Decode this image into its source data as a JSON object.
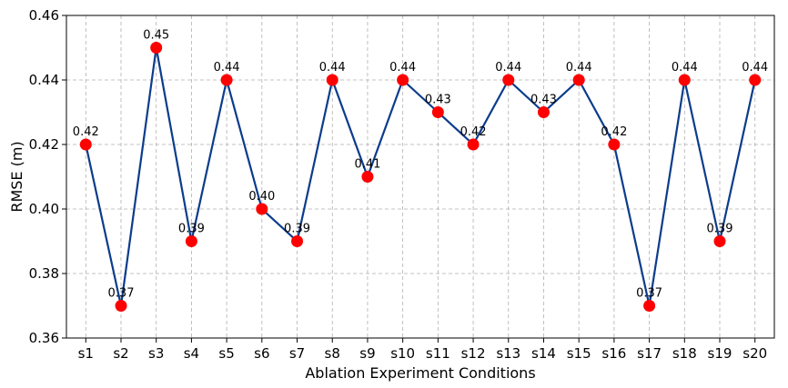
{
  "chart_data": {
    "type": "line",
    "title": "",
    "xlabel": "Ablation Experiment Conditions",
    "ylabel": "RMSE (m)",
    "categories": [
      "s1",
      "s2",
      "s3",
      "s4",
      "s5",
      "s6",
      "s7",
      "s8",
      "s9",
      "s10",
      "s11",
      "s12",
      "s13",
      "s14",
      "s15",
      "s16",
      "s17",
      "s18",
      "s19",
      "s20"
    ],
    "series": [
      {
        "values": [
          0.42,
          0.37,
          0.45,
          0.39,
          0.44,
          0.4,
          0.39,
          0.44,
          0.41,
          0.44,
          0.43,
          0.42,
          0.44,
          0.43,
          0.44,
          0.42,
          0.37,
          0.44,
          0.39,
          0.44
        ],
        "line_color": "#0b3c8c",
        "marker_color": "#ff0000"
      }
    ],
    "data_labels": [
      "0.42",
      "0.37",
      "0.45",
      "0.39",
      "0.44",
      "0.40",
      "0.39",
      "0.44",
      "0.41",
      "0.44",
      "0.43",
      "0.42",
      "0.44",
      "0.43",
      "0.44",
      "0.42",
      "0.37",
      "0.44",
      "0.39",
      "0.44"
    ],
    "y_ticks": [
      "0.36",
      "0.38",
      "0.40",
      "0.42",
      "0.44",
      "0.46"
    ],
    "ylim": [
      0.36,
      0.46
    ],
    "grid": true,
    "grid_style": "dashed"
  }
}
